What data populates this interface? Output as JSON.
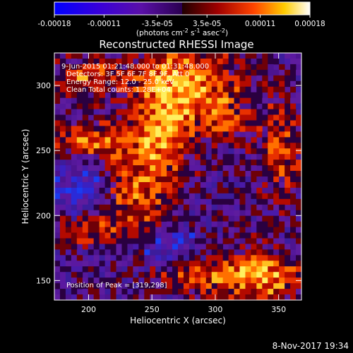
{
  "colorbar": {
    "tick_labels": [
      "-0.00018",
      "-0.00011",
      "-3.5e-05",
      "3.5e-05",
      "0.00011",
      "0.00018"
    ],
    "tick_values": [
      -0.00018,
      -0.00011,
      -3.5e-05,
      3.5e-05,
      0.00011,
      0.00018
    ],
    "range": [
      -0.00018,
      0.00018
    ],
    "unit_parts": {
      "lead": "(photons cm",
      "exp1": "-2",
      "mid1": " s",
      "exp2": "-1",
      "mid2": " asec",
      "exp3": "-2",
      "tail": ")"
    }
  },
  "plot": {
    "title": "Reconstructed RHESSI Image",
    "info_lines": [
      "9-Jun-2015 01:21:48.000 to 01:31:48.000",
      "Detectors: 3F 5F 6F 7F 8F 9F, Att 0",
      "Energy Range: 12.0 - 25.0 keV",
      "Clean     Total counts: 1.28E+04"
    ],
    "peak_label": "Position of Peak = [319,298]",
    "footer_date": "8-Nov-2017 19:34"
  },
  "chart_data": {
    "type": "heatmap",
    "title": "Reconstructed RHESSI Image",
    "xlabel": "Heliocentric X (arcsec)",
    "ylabel": "Heliocentric Y (arcsec)",
    "xlim": [
      173,
      368
    ],
    "ylim": [
      135,
      325
    ],
    "x_ticks": [
      200,
      250,
      300,
      350
    ],
    "y_ticks": [
      150,
      200,
      250,
      300
    ],
    "x_tick_labels": [
      "200",
      "250",
      "300",
      "350"
    ],
    "y_tick_labels": [
      "150",
      "200",
      "250",
      "300"
    ],
    "colormap": "red-temperature with blue negatives",
    "value_range": [
      -0.00018,
      0.00018
    ],
    "peak_position": [
      319,
      298
    ],
    "grid": false
  }
}
